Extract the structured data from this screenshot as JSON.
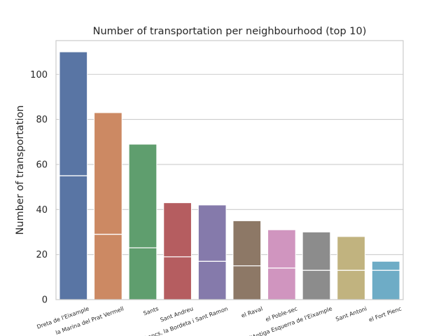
{
  "chart_data": {
    "type": "bar",
    "title": "Number of transportation per neighbourhood (top 10)",
    "xlabel": "",
    "ylabel": "Number of transportation",
    "ylim": [
      0,
      115
    ],
    "yticks": [
      0,
      20,
      40,
      60,
      80,
      100
    ],
    "grid": "horizontal",
    "categories": [
      "Dreta de l'Eixample",
      "la Marina del Prat Vermell",
      "Sants",
      "Sant Andreu",
      "Hostafrancs, la Bordeta i Sant Ramon",
      "el Raval",
      "el Poble-sec",
      "l'Antiga Esquerra de l'Eixample",
      "Sant Antoni",
      "el Fort Pienc"
    ],
    "values": [
      110,
      83,
      69,
      43,
      42,
      35,
      31,
      30,
      28,
      17
    ],
    "inner_line_values": [
      55,
      29,
      23,
      19,
      17,
      15,
      14,
      13,
      13,
      13
    ],
    "colors": [
      "#5975a4",
      "#cc8963",
      "#5f9e6e",
      "#b55d60",
      "#857aab",
      "#8d7866",
      "#d095bf",
      "#8c8c8c",
      "#c1b37f",
      "#6eacc6"
    ]
  }
}
